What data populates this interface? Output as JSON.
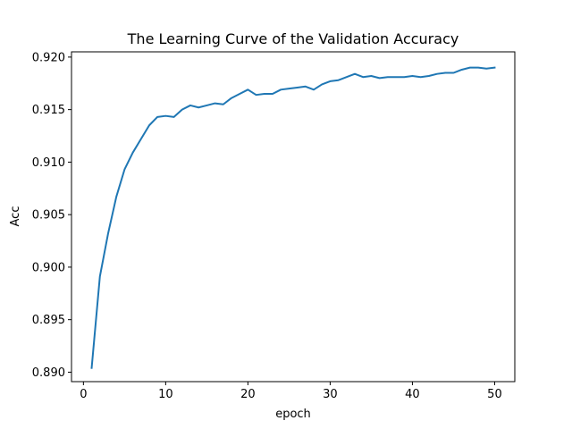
{
  "chart_data": {
    "type": "line",
    "title": "The Learning Curve of the Validation Accuracy",
    "xlabel": "epoch",
    "ylabel": "Acc",
    "xlim": [
      -1.45,
      52.45
    ],
    "ylim": [
      0.8891,
      0.9205
    ],
    "x_ticks": [
      0,
      10,
      20,
      30,
      40,
      50
    ],
    "y_ticks": [
      0.89,
      0.895,
      0.9,
      0.905,
      0.91,
      0.915,
      0.92
    ],
    "y_tick_format": 3,
    "grid": false,
    "legend": "none",
    "line_color": "#1f77b4",
    "x": [
      1,
      2,
      3,
      4,
      5,
      6,
      7,
      8,
      9,
      10,
      11,
      12,
      13,
      14,
      15,
      16,
      17,
      18,
      19,
      20,
      21,
      22,
      23,
      24,
      25,
      26,
      27,
      28,
      29,
      30,
      31,
      32,
      33,
      34,
      35,
      36,
      37,
      38,
      39,
      40,
      41,
      42,
      43,
      44,
      45,
      46,
      47,
      48,
      49,
      50
    ],
    "series": [
      {
        "values": [
          0.8904,
          0.8991,
          0.9032,
          0.9067,
          0.9093,
          0.9109,
          0.9122,
          0.9135,
          0.9143,
          0.9144,
          0.9143,
          0.915,
          0.9154,
          0.9152,
          0.9154,
          0.9156,
          0.9155,
          0.9161,
          0.9165,
          0.9169,
          0.9164,
          0.9165,
          0.9165,
          0.9169,
          0.917,
          0.9171,
          0.9172,
          0.9169,
          0.9174,
          0.9177,
          0.9178,
          0.9181,
          0.9184,
          0.9181,
          0.9182,
          0.918,
          0.9181,
          0.9181,
          0.9181,
          0.9182,
          0.9181,
          0.9182,
          0.9184,
          0.9185,
          0.9185,
          0.9188,
          0.919,
          0.919,
          0.9189,
          0.919
        ]
      }
    ]
  }
}
